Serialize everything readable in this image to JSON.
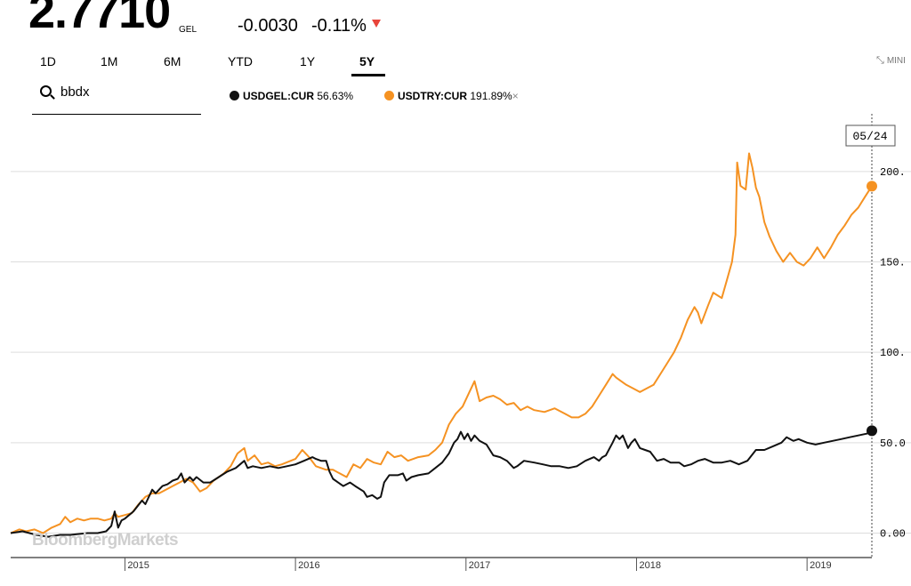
{
  "quote": {
    "price": "2.7710",
    "currency": "GEL",
    "change": "-0.0030",
    "change_pct": "-0.11%",
    "direction_color": "#e8443a"
  },
  "ranges": [
    {
      "label": "1D",
      "active": false
    },
    {
      "label": "1M",
      "active": false
    },
    {
      "label": "6M",
      "active": false
    },
    {
      "label": "YTD",
      "active": false
    },
    {
      "label": "1Y",
      "active": false
    },
    {
      "label": "5Y",
      "active": true
    }
  ],
  "mini_label": "MINI",
  "mini_icon": "collapse-arrows-icon",
  "search": {
    "value": "bbdx"
  },
  "legend": [
    {
      "name": "USDGEL:CUR",
      "value": "56.63%",
      "color": "#111111"
    },
    {
      "name": "USDTRY:CUR",
      "value": "191.89%",
      "color": "#f59222",
      "removable": true
    }
  ],
  "remove_symbol": "×",
  "watermark": "BloombergMarkets",
  "chart_data": {
    "type": "line",
    "ylim": [
      -15,
      225
    ],
    "yticks": [
      0,
      50,
      100,
      150,
      200
    ],
    "ytick_labels": [
      "0.00",
      "50.0",
      "100.",
      "150.",
      "200."
    ],
    "xlim": [
      2014.33,
      2019.38
    ],
    "xticks": [
      2015,
      2016,
      2017,
      2018,
      2019
    ],
    "xtick_labels": [
      "2015",
      "2016",
      "2017",
      "2018",
      "2019"
    ],
    "current_date_label": "05/24",
    "grid": true,
    "series": [
      {
        "name": "USDGEL:CUR",
        "color": "#111111",
        "points": [
          [
            2014.33,
            0
          ],
          [
            2014.4,
            1
          ],
          [
            2014.48,
            -1
          ],
          [
            2014.55,
            -2
          ],
          [
            2014.62,
            -1
          ],
          [
            2014.68,
            -1
          ],
          [
            2014.73,
            -0.5
          ],
          [
            2014.78,
            0
          ],
          [
            2014.84,
            0
          ],
          [
            2014.89,
            1
          ],
          [
            2014.92,
            4
          ],
          [
            2014.94,
            12
          ],
          [
            2014.96,
            3
          ],
          [
            2014.98,
            7
          ],
          [
            2015.0,
            8
          ],
          [
            2015.05,
            12
          ],
          [
            2015.1,
            18
          ],
          [
            2015.12,
            16
          ],
          [
            2015.16,
            24
          ],
          [
            2015.18,
            22
          ],
          [
            2015.22,
            26
          ],
          [
            2015.25,
            27
          ],
          [
            2015.28,
            29
          ],
          [
            2015.31,
            30
          ],
          [
            2015.33,
            33
          ],
          [
            2015.35,
            28
          ],
          [
            2015.38,
            31
          ],
          [
            2015.4,
            29
          ],
          [
            2015.42,
            31
          ],
          [
            2015.46,
            28
          ],
          [
            2015.5,
            28
          ],
          [
            2015.55,
            31
          ],
          [
            2015.6,
            34
          ],
          [
            2015.65,
            36
          ],
          [
            2015.7,
            40
          ],
          [
            2015.72,
            36
          ],
          [
            2015.75,
            37
          ],
          [
            2015.8,
            36
          ],
          [
            2015.85,
            37
          ],
          [
            2015.9,
            36
          ],
          [
            2015.95,
            37
          ],
          [
            2016.0,
            38
          ],
          [
            2016.05,
            40
          ],
          [
            2016.1,
            42
          ],
          [
            2016.12,
            41
          ],
          [
            2016.15,
            40
          ],
          [
            2016.18,
            40
          ],
          [
            2016.2,
            34
          ],
          [
            2016.22,
            30
          ],
          [
            2016.28,
            26
          ],
          [
            2016.32,
            28
          ],
          [
            2016.35,
            26
          ],
          [
            2016.4,
            23
          ],
          [
            2016.42,
            20
          ],
          [
            2016.45,
            21
          ],
          [
            2016.48,
            19
          ],
          [
            2016.5,
            20
          ],
          [
            2016.52,
            28
          ],
          [
            2016.55,
            32
          ],
          [
            2016.6,
            32
          ],
          [
            2016.63,
            33
          ],
          [
            2016.65,
            29
          ],
          [
            2016.68,
            31
          ],
          [
            2016.72,
            32
          ],
          [
            2016.78,
            33
          ],
          [
            2016.82,
            36
          ],
          [
            2016.86,
            39
          ],
          [
            2016.9,
            44
          ],
          [
            2016.93,
            50
          ],
          [
            2016.95,
            52
          ],
          [
            2016.97,
            56
          ],
          [
            2016.99,
            52
          ],
          [
            2017.01,
            55
          ],
          [
            2017.03,
            51
          ],
          [
            2017.05,
            54
          ],
          [
            2017.08,
            51
          ],
          [
            2017.12,
            49
          ],
          [
            2017.16,
            43
          ],
          [
            2017.2,
            42
          ],
          [
            2017.24,
            40
          ],
          [
            2017.28,
            36
          ],
          [
            2017.3,
            37
          ],
          [
            2017.34,
            40
          ],
          [
            2017.4,
            39
          ],
          [
            2017.45,
            38
          ],
          [
            2017.5,
            37
          ],
          [
            2017.55,
            37
          ],
          [
            2017.6,
            36
          ],
          [
            2017.65,
            37
          ],
          [
            2017.7,
            40
          ],
          [
            2017.75,
            42
          ],
          [
            2017.78,
            40
          ],
          [
            2017.8,
            42
          ],
          [
            2017.82,
            43
          ],
          [
            2017.86,
            50
          ],
          [
            2017.88,
            54
          ],
          [
            2017.9,
            52
          ],
          [
            2017.92,
            54
          ],
          [
            2017.95,
            47
          ],
          [
            2017.97,
            50
          ],
          [
            2017.99,
            52
          ],
          [
            2018.02,
            47
          ],
          [
            2018.05,
            46
          ],
          [
            2018.08,
            45
          ],
          [
            2018.12,
            40
          ],
          [
            2018.16,
            41
          ],
          [
            2018.2,
            39
          ],
          [
            2018.25,
            39
          ],
          [
            2018.28,
            37
          ],
          [
            2018.32,
            38
          ],
          [
            2018.36,
            40
          ],
          [
            2018.4,
            41
          ],
          [
            2018.45,
            39
          ],
          [
            2018.5,
            39
          ],
          [
            2018.55,
            40
          ],
          [
            2018.6,
            38
          ],
          [
            2018.65,
            40
          ],
          [
            2018.7,
            46
          ],
          [
            2018.75,
            46
          ],
          [
            2018.8,
            48
          ],
          [
            2018.85,
            50
          ],
          [
            2018.88,
            53
          ],
          [
            2018.9,
            52
          ],
          [
            2018.92,
            51
          ],
          [
            2018.95,
            52
          ],
          [
            2019.0,
            50
          ],
          [
            2019.05,
            49
          ],
          [
            2019.1,
            50
          ],
          [
            2019.15,
            51
          ],
          [
            2019.2,
            52
          ],
          [
            2019.25,
            53
          ],
          [
            2019.3,
            54
          ],
          [
            2019.35,
            55
          ],
          [
            2019.38,
            56.63
          ]
        ]
      },
      {
        "name": "USDTRY:CUR",
        "color": "#f59222",
        "points": [
          [
            2014.33,
            0
          ],
          [
            2014.38,
            2
          ],
          [
            2014.42,
            1
          ],
          [
            2014.47,
            2
          ],
          [
            2014.52,
            0
          ],
          [
            2014.57,
            3
          ],
          [
            2014.62,
            5
          ],
          [
            2014.65,
            9
          ],
          [
            2014.68,
            6
          ],
          [
            2014.72,
            8
          ],
          [
            2014.76,
            7
          ],
          [
            2014.8,
            8
          ],
          [
            2014.84,
            8
          ],
          [
            2014.88,
            7
          ],
          [
            2014.92,
            8
          ],
          [
            2014.94,
            11
          ],
          [
            2014.96,
            9
          ],
          [
            2015.0,
            10
          ],
          [
            2015.04,
            11
          ],
          [
            2015.08,
            16
          ],
          [
            2015.12,
            20
          ],
          [
            2015.16,
            22
          ],
          [
            2015.2,
            22
          ],
          [
            2015.24,
            24
          ],
          [
            2015.28,
            26
          ],
          [
            2015.32,
            28
          ],
          [
            2015.36,
            30
          ],
          [
            2015.4,
            28
          ],
          [
            2015.44,
            23
          ],
          [
            2015.48,
            25
          ],
          [
            2015.52,
            29
          ],
          [
            2015.58,
            33
          ],
          [
            2015.62,
            37
          ],
          [
            2015.66,
            44
          ],
          [
            2015.7,
            47
          ],
          [
            2015.72,
            40
          ],
          [
            2015.76,
            43
          ],
          [
            2015.8,
            38
          ],
          [
            2015.84,
            39
          ],
          [
            2015.88,
            37
          ],
          [
            2015.92,
            38
          ],
          [
            2016.0,
            41
          ],
          [
            2016.04,
            46
          ],
          [
            2016.08,
            42
          ],
          [
            2016.12,
            37
          ],
          [
            2016.18,
            35
          ],
          [
            2016.22,
            35
          ],
          [
            2016.26,
            33
          ],
          [
            2016.3,
            31
          ],
          [
            2016.34,
            38
          ],
          [
            2016.38,
            36
          ],
          [
            2016.42,
            41
          ],
          [
            2016.46,
            39
          ],
          [
            2016.5,
            38
          ],
          [
            2016.54,
            45
          ],
          [
            2016.58,
            42
          ],
          [
            2016.62,
            43
          ],
          [
            2016.66,
            40
          ],
          [
            2016.72,
            42
          ],
          [
            2016.78,
            43
          ],
          [
            2016.82,
            46
          ],
          [
            2016.86,
            50
          ],
          [
            2016.9,
            60
          ],
          [
            2016.94,
            66
          ],
          [
            2016.98,
            70
          ],
          [
            2017.02,
            78
          ],
          [
            2017.05,
            84
          ],
          [
            2017.08,
            73
          ],
          [
            2017.12,
            75
          ],
          [
            2017.16,
            76
          ],
          [
            2017.2,
            74
          ],
          [
            2017.24,
            71
          ],
          [
            2017.28,
            72
          ],
          [
            2017.32,
            68
          ],
          [
            2017.36,
            70
          ],
          [
            2017.4,
            68
          ],
          [
            2017.46,
            67
          ],
          [
            2017.52,
            69
          ],
          [
            2017.58,
            66
          ],
          [
            2017.62,
            64
          ],
          [
            2017.66,
            64
          ],
          [
            2017.7,
            66
          ],
          [
            2017.74,
            70
          ],
          [
            2017.78,
            76
          ],
          [
            2017.82,
            82
          ],
          [
            2017.86,
            88
          ],
          [
            2017.88,
            86
          ],
          [
            2017.91,
            84
          ],
          [
            2017.94,
            82
          ],
          [
            2017.98,
            80
          ],
          [
            2018.02,
            78
          ],
          [
            2018.06,
            80
          ],
          [
            2018.1,
            82
          ],
          [
            2018.14,
            88
          ],
          [
            2018.18,
            94
          ],
          [
            2018.22,
            100
          ],
          [
            2018.26,
            108
          ],
          [
            2018.3,
            118
          ],
          [
            2018.34,
            125
          ],
          [
            2018.36,
            122
          ],
          [
            2018.38,
            116
          ],
          [
            2018.42,
            126
          ],
          [
            2018.45,
            133
          ],
          [
            2018.5,
            130
          ],
          [
            2018.53,
            140
          ],
          [
            2018.56,
            150
          ],
          [
            2018.58,
            165
          ],
          [
            2018.59,
            205
          ],
          [
            2018.61,
            192
          ],
          [
            2018.64,
            190
          ],
          [
            2018.66,
            210
          ],
          [
            2018.68,
            202
          ],
          [
            2018.7,
            191
          ],
          [
            2018.72,
            186
          ],
          [
            2018.75,
            172
          ],
          [
            2018.78,
            164
          ],
          [
            2018.82,
            156
          ],
          [
            2018.86,
            150
          ],
          [
            2018.9,
            155
          ],
          [
            2018.94,
            150
          ],
          [
            2018.98,
            148
          ],
          [
            2019.02,
            152
          ],
          [
            2019.06,
            158
          ],
          [
            2019.1,
            152
          ],
          [
            2019.14,
            158
          ],
          [
            2019.18,
            165
          ],
          [
            2019.22,
            170
          ],
          [
            2019.26,
            176
          ],
          [
            2019.3,
            180
          ],
          [
            2019.34,
            186
          ],
          [
            2019.38,
            191.89
          ]
        ]
      }
    ]
  }
}
